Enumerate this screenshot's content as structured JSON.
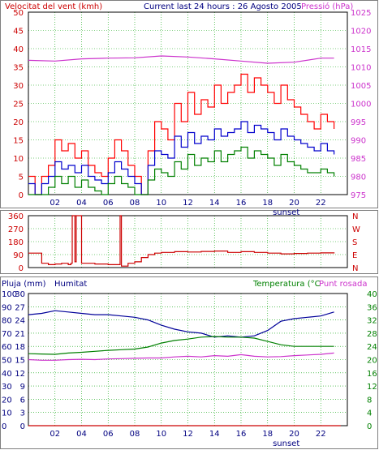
{
  "header": {
    "left_title": "Velocitat del vent (kmh)",
    "center_title": "Current last 24 hours : 26 Agosto 2005",
    "right_title": "Pressió (hPa)"
  },
  "bottom_header": {
    "rain_title": "Pluja (mm)",
    "humidity_title": "Humitat",
    "temp_title": "Temperatura (°C",
    "dew_title": "Punt rosada"
  },
  "colors": {
    "border": "#7f7f7f",
    "grid": "#00a000",
    "wind_axis": "#cc0000",
    "pressure": "#cc33cc",
    "gust": "#ff0000",
    "avg": "#0000cc",
    "low": "#008000",
    "direction": "#cc0000",
    "humidity": "#000099",
    "temp": "#008000",
    "dew": "#cc33cc",
    "rain": "#cc0000",
    "dark_axis": "#000080"
  },
  "x_axis": {
    "ticks": [
      "02",
      "04",
      "06",
      "08",
      "10",
      "12",
      "14",
      "16",
      "18",
      "20",
      "22"
    ],
    "sunset_label": "sunset"
  },
  "chart_data": [
    {
      "id": "wind",
      "type": "line",
      "title": "Velocitat del vent (kmh)",
      "x_unit": "hour",
      "xlim": [
        0,
        24
      ],
      "ylim": [
        0,
        50
      ],
      "y_ticks": [
        "0",
        "5",
        "10",
        "15",
        "20",
        "25",
        "30",
        "35",
        "40",
        "45",
        "50"
      ],
      "y2_label": "Pressió (hPa)",
      "y2lim": [
        975,
        1025
      ],
      "y2_ticks": [
        "975",
        "980",
        "985",
        "990",
        "995",
        "1000",
        "1005",
        "1010",
        "1015",
        "1020",
        "1025"
      ],
      "series": [
        {
          "key": "gust",
          "x": [
            0,
            0.5,
            1,
            1.5,
            2,
            2.5,
            3,
            3.5,
            4,
            4.5,
            5,
            5.5,
            6,
            6.5,
            7,
            7.5,
            8,
            8.5,
            9,
            9.5,
            10,
            10.5,
            11,
            11.5,
            12,
            12.5,
            13,
            13.5,
            14,
            14.5,
            15,
            15.5,
            16,
            16.5,
            17,
            17.5,
            18,
            18.5,
            19,
            19.5,
            20,
            20.5,
            21,
            21.5,
            22,
            22.5,
            23
          ],
          "y": [
            5,
            0,
            5,
            8,
            15,
            12,
            14,
            10,
            12,
            8,
            6,
            5,
            10,
            15,
            12,
            8,
            5,
            0,
            12,
            20,
            18,
            15,
            25,
            20,
            28,
            22,
            26,
            24,
            30,
            25,
            28,
            30,
            33,
            28,
            32,
            30,
            28,
            25,
            30,
            26,
            24,
            22,
            20,
            18,
            22,
            20,
            18
          ]
        },
        {
          "key": "avg",
          "x": [
            0,
            0.5,
            1,
            1.5,
            2,
            2.5,
            3,
            3.5,
            4,
            4.5,
            5,
            5.5,
            6,
            6.5,
            7,
            7.5,
            8,
            8.5,
            9,
            9.5,
            10,
            10.5,
            11,
            11.5,
            12,
            12.5,
            13,
            13.5,
            14,
            14.5,
            15,
            15.5,
            16,
            16.5,
            17,
            17.5,
            18,
            18.5,
            19,
            19.5,
            20,
            20.5,
            21,
            21.5,
            22,
            22.5,
            23
          ],
          "y": [
            3,
            0,
            3,
            5,
            9,
            7,
            8,
            6,
            8,
            5,
            4,
            3,
            6,
            9,
            7,
            5,
            3,
            0,
            8,
            12,
            11,
            10,
            16,
            13,
            17,
            14,
            16,
            15,
            18,
            16,
            17,
            18,
            20,
            17,
            19,
            18,
            17,
            15,
            18,
            16,
            15,
            14,
            13,
            12,
            14,
            12,
            11
          ]
        },
        {
          "key": "low",
          "x": [
            0,
            0.5,
            1,
            1.5,
            2,
            2.5,
            3,
            3.5,
            4,
            4.5,
            5,
            5.5,
            6,
            6.5,
            7,
            7.5,
            8,
            8.5,
            9,
            9.5,
            10,
            10.5,
            11,
            11.5,
            12,
            12.5,
            13,
            13.5,
            14,
            14.5,
            15,
            15.5,
            16,
            16.5,
            17,
            17.5,
            18,
            18.5,
            19,
            19.5,
            20,
            20.5,
            21,
            21.5,
            22,
            22.5,
            23
          ],
          "y": [
            0,
            0,
            0,
            2,
            5,
            3,
            5,
            2,
            4,
            2,
            1,
            0,
            3,
            5,
            3,
            2,
            0,
            0,
            4,
            7,
            6,
            5,
            9,
            7,
            11,
            8,
            10,
            9,
            12,
            9,
            11,
            12,
            13,
            10,
            12,
            11,
            10,
            8,
            11,
            9,
            8,
            7,
            6,
            6,
            7,
            6,
            5
          ]
        },
        {
          "key": "pressure",
          "axis": "y2",
          "x": [
            0,
            2,
            4,
            6,
            8,
            10,
            12,
            14,
            16,
            18,
            20,
            22,
            23
          ],
          "y": [
            1011.8,
            1011.6,
            1012.2,
            1012.4,
            1012.5,
            1013.0,
            1012.7,
            1012.2,
            1011.6,
            1011.0,
            1011.3,
            1012.4,
            1012.4
          ]
        }
      ]
    },
    {
      "id": "direction",
      "type": "line",
      "x_unit": "hour",
      "xlim": [
        0,
        24
      ],
      "ylim": [
        0,
        360
      ],
      "y_ticks": [
        "0",
        "90",
        "180",
        "270",
        "360"
      ],
      "y2_ticks": [
        "N",
        "E",
        "S",
        "W",
        "N"
      ],
      "series": [
        {
          "key": "direction",
          "x": [
            0,
            0.7,
            1,
            1.5,
            2,
            2.5,
            3,
            3.2,
            3.3,
            3.5,
            3.6,
            4,
            5,
            6,
            6.8,
            6.9,
            7,
            7.5,
            8,
            8.5,
            9,
            9.5,
            10,
            11,
            12,
            13,
            14,
            15,
            16,
            17,
            18,
            19,
            20,
            21,
            22,
            23
          ],
          "y": [
            100,
            100,
            30,
            20,
            25,
            30,
            20,
            30,
            360,
            40,
            360,
            30,
            25,
            20,
            20,
            360,
            10,
            30,
            40,
            70,
            90,
            100,
            105,
            110,
            108,
            112,
            115,
            105,
            110,
            105,
            100,
            95,
            98,
            100,
            102,
            105
          ]
        }
      ]
    },
    {
      "id": "climate",
      "type": "line",
      "x_unit": "hour",
      "xlim": [
        0,
        24
      ],
      "rain_axis": {
        "label": "Pluja (mm)",
        "ylim": [
          0,
          100
        ],
        "ticks": [
          "0",
          "10",
          "20",
          "30",
          "40",
          "50",
          "60",
          "70",
          "80",
          "90",
          "100"
        ]
      },
      "humidity_axis": {
        "label": "Humitat",
        "ylim": [
          0,
          100
        ],
        "ticks": [
          "0",
          "3",
          "6",
          "9",
          "12",
          "15",
          "18",
          "21",
          "24",
          "27",
          "30"
        ]
      },
      "temp_axis": {
        "label": "Temperatura (°C",
        "ylim": [
          0,
          40
        ],
        "ticks": [
          "0",
          "4",
          "8",
          "12",
          "16",
          "20",
          "24",
          "28",
          "32",
          "36",
          "40"
        ]
      },
      "series": [
        {
          "key": "humidity",
          "x": [
            0,
            1,
            2,
            3,
            4,
            5,
            6,
            7,
            8,
            9,
            10,
            11,
            12,
            13,
            14,
            15,
            16,
            17,
            18,
            19,
            20,
            21,
            22,
            23
          ],
          "y": [
            84,
            85,
            87,
            86,
            85,
            84,
            84,
            83,
            82,
            80,
            76,
            73,
            71,
            70,
            67,
            68,
            67,
            68,
            72,
            79,
            81,
            82,
            83,
            86
          ]
        },
        {
          "key": "temp",
          "x": [
            0,
            1,
            2,
            3,
            4,
            5,
            6,
            7,
            8,
            9,
            10,
            11,
            12,
            13,
            14,
            15,
            16,
            17,
            18,
            19,
            20,
            21,
            22,
            23
          ],
          "y": [
            21.8,
            21.7,
            21.6,
            22.0,
            22.2,
            22.5,
            22.8,
            23.0,
            23.2,
            23.8,
            25.0,
            25.8,
            26.2,
            26.8,
            27.0,
            26.8,
            26.8,
            26.5,
            25.5,
            24.5,
            24.0,
            24.0,
            24.0,
            24.0
          ]
        },
        {
          "key": "dew",
          "x": [
            0,
            1,
            2,
            3,
            4,
            5,
            6,
            7,
            8,
            9,
            10,
            11,
            12,
            13,
            14,
            15,
            16,
            17,
            18,
            19,
            20,
            21,
            22,
            23
          ],
          "y": [
            20.0,
            19.8,
            19.8,
            20.0,
            20.1,
            20.0,
            20.2,
            20.3,
            20.4,
            20.5,
            20.5,
            20.8,
            21.0,
            20.8,
            21.2,
            21.0,
            21.5,
            21.0,
            20.8,
            20.9,
            21.2,
            21.4,
            21.6,
            22.0
          ]
        },
        {
          "key": "rain",
          "x": [
            0,
            23.5
          ],
          "y": [
            0,
            0
          ]
        }
      ]
    }
  ]
}
